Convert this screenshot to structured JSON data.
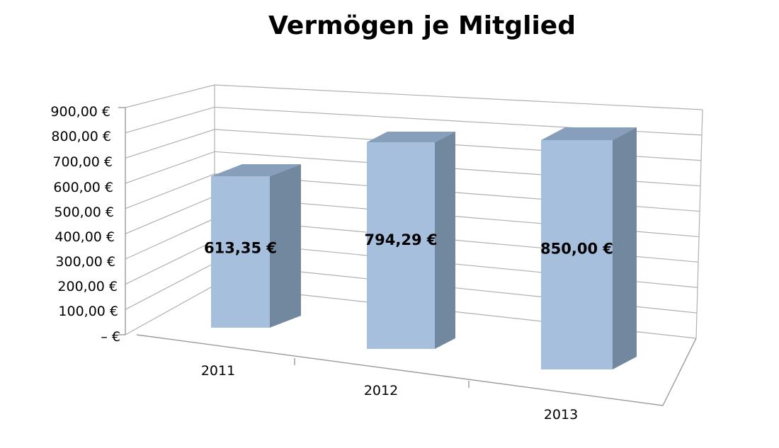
{
  "chart_data": {
    "type": "bar",
    "title": "Vermögen je Mitglied",
    "categories": [
      "2011",
      "2012",
      "2013"
    ],
    "values": [
      613.35,
      794.29,
      850.0
    ],
    "data_labels": [
      "613,35 €",
      "794,29 €",
      "850,00 €"
    ],
    "ylim": [
      0,
      900
    ],
    "y_ticks": [
      "–  €",
      "100,00 €",
      "200,00 €",
      "300,00 €",
      "400,00 €",
      "500,00 €",
      "600,00 €",
      "700,00 €",
      "800,00 €",
      "900,00 €"
    ],
    "xlabel": "",
    "ylabel": "",
    "grid": true,
    "legend": "none",
    "style": "3d-perspective-columns",
    "colors": {
      "front": "#a6bfdd",
      "side": "#72889f",
      "top": "#889fbc"
    }
  }
}
